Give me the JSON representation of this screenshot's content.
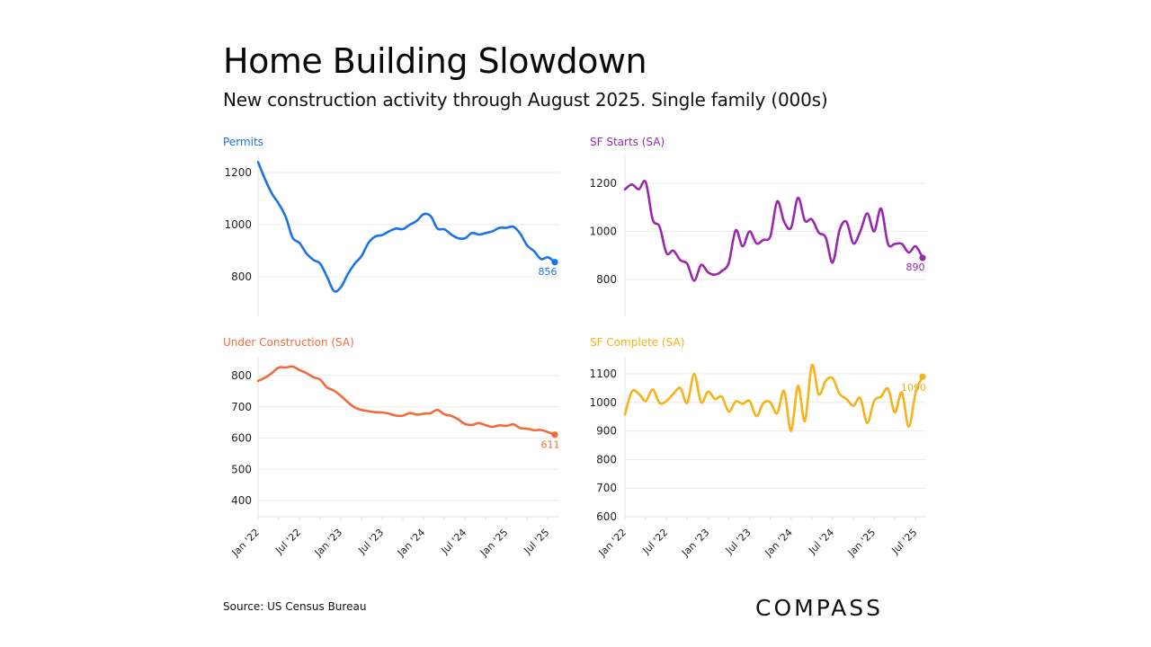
{
  "header": {
    "title": "Home Building Slowdown",
    "subtitle": "New construction activity through August 2025. Single family (000s)"
  },
  "footer": {
    "source": "Source: US Census Bureau",
    "logo": "COMPASS"
  },
  "chart_data": [
    {
      "id": "permits",
      "type": "line",
      "title": "Permits",
      "color": "#1a73e8",
      "xlabel": "",
      "ylabel": "",
      "ylim": [
        700,
        1250
      ],
      "yticks": [
        800,
        1000,
        1200
      ],
      "x_start": "Jan 2022",
      "x_end": "Aug 2025",
      "xtick_labels": [],
      "grid": true,
      "end_label": "856",
      "values": [
        1240,
        1175,
        1120,
        1080,
        1030,
        950,
        930,
        890,
        865,
        850,
        800,
        745,
        760,
        810,
        850,
        880,
        930,
        955,
        960,
        975,
        985,
        983,
        1000,
        1015,
        1040,
        1033,
        985,
        982,
        962,
        948,
        948,
        968,
        962,
        968,
        975,
        988,
        988,
        992,
        965,
        920,
        898,
        868,
        875,
        856
      ]
    },
    {
      "id": "sf-starts",
      "type": "line",
      "title": "SF Starts (SA)",
      "color": "#9b27af",
      "xlabel": "",
      "ylabel": "",
      "ylim": [
        680,
        1300
      ],
      "yticks": [
        800,
        1000,
        1200
      ],
      "x_start": "Jan 2022",
      "x_end": "Aug 2025",
      "xtick_labels": [],
      "grid": true,
      "end_label": "890",
      "values": [
        1175,
        1195,
        1175,
        1205,
        1050,
        1020,
        910,
        920,
        880,
        865,
        795,
        860,
        830,
        820,
        835,
        870,
        1005,
        938,
        1000,
        950,
        965,
        980,
        1125,
        1040,
        1015,
        1140,
        1045,
        1050,
        995,
        975,
        870,
        1005,
        1040,
        950,
        1000,
        1075,
        1000,
        1095,
        948,
        948,
        948,
        912,
        938,
        890
      ]
    },
    {
      "id": "under-construction",
      "type": "line",
      "title": "Under Construction (SA)",
      "color": "#f26a3d",
      "xlabel": "",
      "ylabel": "",
      "ylim": [
        350,
        850
      ],
      "yticks": [
        400,
        500,
        600,
        700,
        800
      ],
      "x_start": "Jan 2022",
      "x_end": "Aug 2025",
      "xtick_labels": [
        "Jan '22",
        "Jul '22",
        "Jan '23",
        "Jul '23",
        "Jan '24",
        "Jul '24",
        "Jan '25",
        "Jul '25"
      ],
      "grid": true,
      "end_label": "611",
      "values": [
        783,
        793,
        808,
        826,
        826,
        829,
        818,
        808,
        795,
        787,
        762,
        752,
        735,
        715,
        698,
        690,
        686,
        683,
        682,
        678,
        672,
        672,
        680,
        675,
        678,
        680,
        690,
        676,
        671,
        660,
        645,
        642,
        648,
        641,
        636,
        641,
        639,
        644,
        632,
        630,
        625,
        626,
        619,
        611
      ]
    },
    {
      "id": "sf-complete",
      "type": "line",
      "title": "SF Complete (SA)",
      "color": "#f8b117",
      "xlabel": "",
      "ylabel": "",
      "ylim": [
        600,
        1150
      ],
      "yticks": [
        600,
        700,
        800,
        900,
        1000,
        1100
      ],
      "x_start": "Jan 2022",
      "x_end": "Aug 2025",
      "xtick_labels": [
        "Jan '22",
        "Jul '22",
        "Jan '23",
        "Jul '23",
        "Jan '24",
        "Jul '24",
        "Jan '25",
        "Jul '25"
      ],
      "grid": true,
      "end_label": "1090",
      "values": [
        958,
        1038,
        1030,
        1005,
        1045,
        998,
        1005,
        1030,
        1050,
        998,
        1100,
        1000,
        1038,
        1012,
        1020,
        968,
        1003,
        995,
        1005,
        952,
        998,
        1000,
        962,
        1040,
        900,
        1058,
        935,
        1130,
        1028,
        1075,
        1085,
        1030,
        1012,
        988,
        1015,
        928,
        1005,
        1020,
        1048,
        965,
        1035,
        915,
        1035,
        1090
      ]
    }
  ]
}
